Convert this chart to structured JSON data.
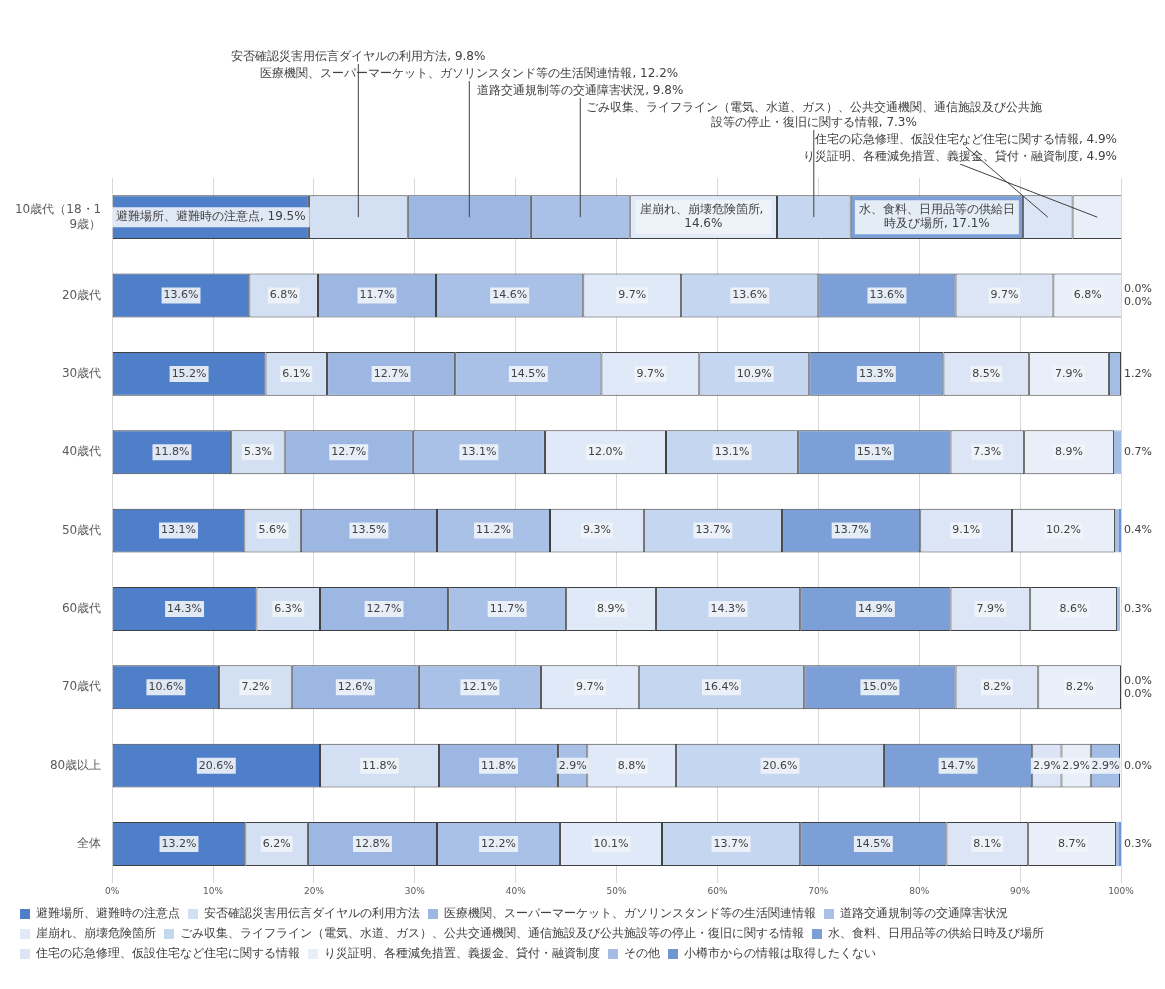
{
  "chart_data": {
    "type": "bar",
    "orientation": "horizontal",
    "stacked": true,
    "categories": [
      "10歳代（18・19歳）",
      "20歳代",
      "30歳代",
      "40歳代",
      "50歳代",
      "60歳代",
      "70歳代",
      "80歳以上",
      "全体"
    ],
    "xlim": [
      0,
      100
    ],
    "xticks": [
      {
        "value": 0,
        "label": "0%"
      },
      {
        "value": 10,
        "label": "10%"
      },
      {
        "value": 20,
        "label": "20%"
      },
      {
        "value": 30,
        "label": "30%"
      },
      {
        "value": 40,
        "label": "40%"
      },
      {
        "value": 50,
        "label": "50%"
      },
      {
        "value": 60,
        "label": "60%"
      },
      {
        "value": 70,
        "label": "70%"
      },
      {
        "value": 80,
        "label": "80%"
      },
      {
        "value": 90,
        "label": "90%"
      },
      {
        "value": 100,
        "label": "100%"
      }
    ],
    "grid": "x",
    "legend": "bottom",
    "series": [
      {
        "name": "避難場所、避難時の注意点",
        "color": "#4f7fc8",
        "values": [
          19.5,
          13.6,
          15.2,
          11.8,
          13.1,
          14.3,
          10.6,
          20.6,
          13.2
        ],
        "value_labels": [
          "避難場所、避難時の注意点, 19.5%",
          "13.6%",
          "15.2%",
          "11.8%",
          "13.1%",
          "14.3%",
          "10.6%",
          "20.6%",
          "13.2%"
        ]
      },
      {
        "name": "安否確認災害用伝言ダイヤルの利用方法",
        "color": "#d3dff3",
        "values": [
          9.8,
          6.8,
          6.1,
          5.3,
          5.6,
          6.3,
          7.2,
          11.8,
          6.2
        ],
        "value_labels": [
          "安否確認災害用伝言ダイヤルの利用方法, 9.8%",
          "6.8%",
          "6.1%",
          "5.3%",
          "5.6%",
          "6.3%",
          "7.2%",
          "11.8%",
          "6.2%"
        ]
      },
      {
        "name": "医療機関、スーパーマーケット、ガソリンスタンド等の生活関連情報",
        "color": "#9db7e3",
        "values": [
          12.2,
          11.7,
          12.7,
          12.7,
          13.5,
          12.7,
          12.6,
          11.8,
          12.8
        ],
        "value_labels": [
          "医療機関、スーパーマーケット、ガソリンスタンド等の生活関連情報, 12.2%",
          "11.7%",
          "12.7%",
          "12.7%",
          "13.5%",
          "12.7%",
          "12.6%",
          "11.8%",
          "12.8%"
        ]
      },
      {
        "name": "道路交通規制等の交通障害状況",
        "color": "#aac1e7",
        "values": [
          9.8,
          14.6,
          14.5,
          13.1,
          11.2,
          11.7,
          12.1,
          2.9,
          12.2
        ],
        "value_labels": [
          "道路交通規制等の交通障害状況, 9.8%",
          "14.6%",
          "14.5%",
          "13.1%",
          "11.2%",
          "11.7%",
          "12.1%",
          "2.9%",
          "12.2%"
        ]
      },
      {
        "name": "崖崩れ、崩壊危険箇所",
        "color": "#e0e9f7",
        "values": [
          14.6,
          9.7,
          9.7,
          12.0,
          9.3,
          8.9,
          9.7,
          8.8,
          10.1
        ],
        "value_labels": [
          "崖崩れ、崩壊危険箇所, 14.6%",
          "9.7%",
          "9.7%",
          "12.0%",
          "9.3%",
          "8.9%",
          "9.7%",
          "8.8%",
          "10.1%"
        ]
      },
      {
        "name": "ごみ収集、ライフライン（電気、水道、ガス）、公共交通機関、通信施設及び公共施設等の停止・復旧に関する情報",
        "color": "#c5d6f0",
        "values": [
          7.3,
          13.6,
          10.9,
          13.1,
          13.7,
          14.3,
          16.4,
          20.6,
          13.7
        ],
        "value_labels": [
          "ごみ収集、ライフライン（電気、水道、ガス）、公共交通機関、通信施設及び公共施設等の停止・復旧に関する情報, 7.3%",
          "13.6%",
          "10.9%",
          "13.1%",
          "13.7%",
          "14.3%",
          "16.4%",
          "20.6%",
          "13.7%"
        ]
      },
      {
        "name": "水、食料、日用品等の供給日時及び場所",
        "color": "#7b9fd6",
        "values": [
          17.1,
          13.6,
          13.3,
          15.1,
          13.7,
          14.9,
          15.0,
          14.7,
          14.5
        ],
        "value_labels": [
          "水、食料、日用品等の供給日時及び場所, 17.1%",
          "13.6%",
          "13.3%",
          "15.1%",
          "13.7%",
          "14.9%",
          "15.0%",
          "14.7%",
          "14.5%"
        ]
      },
      {
        "name": "住宅の応急修理、仮設住宅など住宅に関する情報",
        "color": "#dbe5f5",
        "values": [
          4.9,
          9.7,
          8.5,
          7.3,
          9.1,
          7.9,
          8.2,
          2.9,
          8.1
        ],
        "value_labels": [
          "住宅の応急修理、仮設住宅など住宅に関する情報, 4.9%",
          "9.7%",
          "8.5%",
          "7.3%",
          "9.1%",
          "7.9%",
          "8.2%",
          "2.9%",
          "8.1%"
        ]
      },
      {
        "name": "り災証明、各種減免措置、義援金、貸付・融資制度",
        "color": "#e9eff9",
        "values": [
          4.9,
          6.8,
          7.9,
          8.9,
          10.2,
          8.6,
          8.2,
          2.9,
          8.7
        ],
        "value_labels": [
          "り災証明、各種減免措置、義援金、貸付・融資制度, 4.9%",
          "6.8%",
          "7.9%",
          "8.9%",
          "10.2%",
          "8.6%",
          "8.2%",
          "2.9%",
          "8.7%"
        ]
      },
      {
        "name": "その他",
        "color": "#a3bde5",
        "values": [
          0,
          0.0,
          1.2,
          0.7,
          0.4,
          0.3,
          0.0,
          2.9,
          0.3
        ],
        "value_labels": [
          null,
          "0.0%",
          "1.2%",
          "0.7%",
          "0.4%",
          "0.3%",
          "0.0%",
          "2.9%",
          "0.3%"
        ]
      },
      {
        "name": "小樽市からの情報は取得したくない",
        "color": "#6f95d2",
        "values": [
          0,
          0.0,
          0,
          0,
          0.2,
          0,
          0.0,
          0.0,
          0.2
        ],
        "value_labels": [
          null,
          "0.0%",
          null,
          null,
          null,
          null,
          "0.0%",
          "0.0%",
          null
        ]
      }
    ]
  }
}
